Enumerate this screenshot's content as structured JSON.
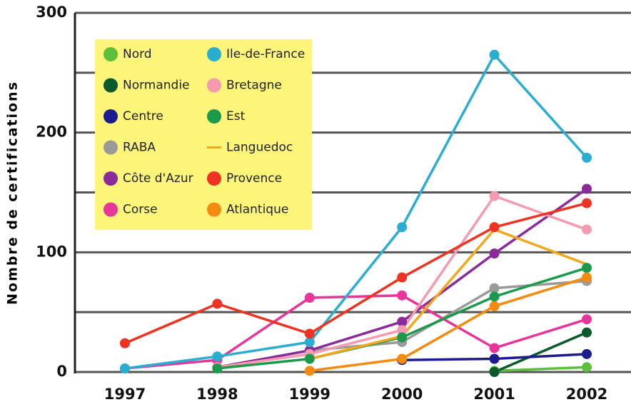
{
  "chart_data": {
    "type": "line",
    "y_label": "Nombre de certifications",
    "categories": [
      "1997",
      "1998",
      "1999",
      "2000",
      "2001",
      "2002"
    ],
    "ylim": [
      0,
      300
    ],
    "yticks": [
      0,
      100,
      200,
      300
    ],
    "minor_yticks": [
      50,
      150,
      250
    ],
    "grid": true,
    "legend_position": "upper left",
    "series": [
      {
        "name": "Nord",
        "color": "#5dbf3a",
        "values": [
          null,
          null,
          null,
          null,
          1,
          4
        ]
      },
      {
        "name": "Normandie",
        "color": "#0b5a2c",
        "values": [
          null,
          null,
          null,
          null,
          0,
          33
        ]
      },
      {
        "name": "Centre",
        "color": "#1c1c8e",
        "values": [
          null,
          null,
          null,
          10,
          11,
          15
        ]
      },
      {
        "name": "RABA",
        "color": "#9a9a9a",
        "values": [
          null,
          4,
          18,
          25,
          70,
          76
        ]
      },
      {
        "name": "Côte d'Azur",
        "color": "#8b2a9a",
        "values": [
          null,
          4,
          18,
          42,
          99,
          153
        ]
      },
      {
        "name": "Corse",
        "color": "#e8359a",
        "values": [
          3,
          10,
          62,
          64,
          20,
          44
        ]
      },
      {
        "name": "Ile-de-France",
        "color": "#2aaed0",
        "values": [
          3,
          13,
          25,
          121,
          265,
          179
        ]
      },
      {
        "name": "Bretagne",
        "color": "#f59ab0",
        "values": [
          null,
          4,
          15,
          35,
          147,
          119
        ]
      },
      {
        "name": "Est",
        "color": "#1a9a4a",
        "values": [
          null,
          3,
          11,
          29,
          63,
          87
        ]
      },
      {
        "name": "Languedoc",
        "color": "#f2a81e",
        "marker": false,
        "values": [
          null,
          null,
          11,
          30,
          119,
          90
        ]
      },
      {
        "name": "Provence",
        "color": "#ee3322",
        "values": [
          24,
          57,
          32,
          79,
          121,
          141
        ]
      },
      {
        "name": "Atlantique",
        "color": "#f58a10",
        "values": [
          null,
          null,
          1,
          11,
          55,
          79
        ]
      }
    ]
  }
}
